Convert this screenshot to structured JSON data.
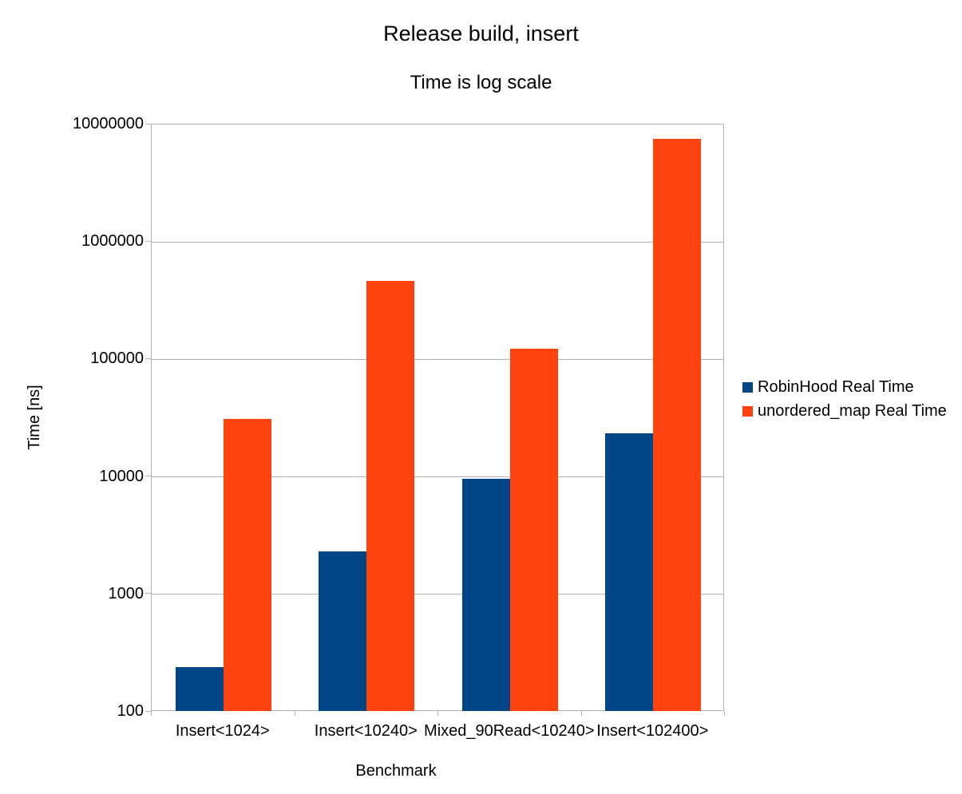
{
  "page": {
    "background": "#ffffff"
  },
  "chart_data": {
    "type": "bar",
    "title": "Release build, insert",
    "subtitle": "Time is log scale",
    "xlabel": "Benchmark",
    "ylabel": "Time [ns]",
    "y_scale": "log",
    "ylim": [
      100,
      10000000
    ],
    "y_ticks": [
      100,
      1000,
      10000,
      100000,
      1000000,
      10000000
    ],
    "grid": "horizontal",
    "legend_position": "right",
    "categories": [
      "Insert<1024>",
      "Insert<10240>",
      "Mixed_90Read<10240>",
      "Insert<102400>"
    ],
    "series": [
      {
        "name": "RobinHood Real Time",
        "key": "robinhood-real-time",
        "color": "#004586",
        "values": [
          235,
          2300,
          9500,
          23000
        ]
      },
      {
        "name": "unordered_map Real Time",
        "key": "unordered-map-real-time",
        "color": "#ff420e",
        "values": [
          30500,
          460000,
          122000,
          7400000
        ]
      }
    ],
    "colors": {
      "gridline": "#b3b3b3",
      "axis": "#b3b3b3",
      "text": "#000000"
    }
  }
}
